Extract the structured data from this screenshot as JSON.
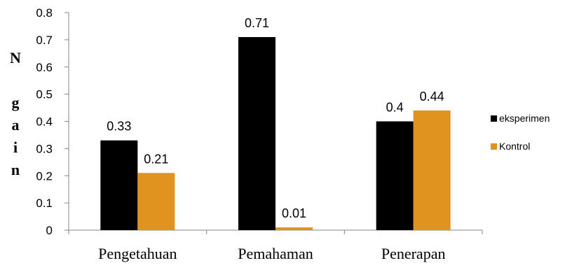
{
  "chart_data": {
    "type": "bar",
    "title": "",
    "xlabel": "",
    "ylabel": "N gain",
    "ylim": [
      0,
      0.8
    ],
    "yticks": [
      "0",
      "0.1",
      "0.2",
      "0.3",
      "0.4",
      "0.5",
      "0.6",
      "0.7",
      "0.8"
    ],
    "categories": [
      "Pengetahuan",
      "Pemahaman",
      "Penerapan"
    ],
    "series": [
      {
        "name": "eksperimen",
        "color": "#000000",
        "values": [
          0.33,
          0.71,
          0.4
        ],
        "labels": [
          "0.33",
          "0.71",
          "0.4"
        ]
      },
      {
        "name": "Kontrol",
        "color": "#ff9a00",
        "values": [
          0.21,
          0.01,
          0.44
        ],
        "labels": [
          "0.21",
          "0.01",
          "0.44"
        ]
      }
    ],
    "grid": false,
    "legend_position": "right"
  }
}
